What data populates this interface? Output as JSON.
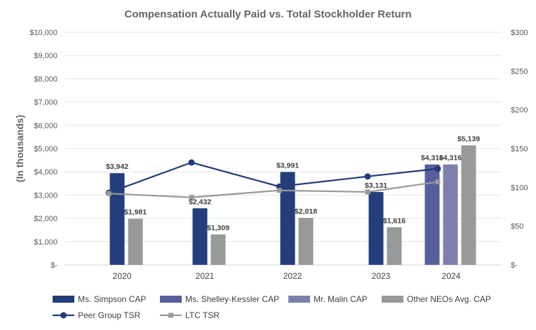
{
  "chart_data": {
    "type": "bar",
    "title": "Compensation Actually Paid vs. Total Stockholder Return",
    "ylabel": "(In thousands)",
    "categories": [
      "2020",
      "2021",
      "2022",
      "2023",
      "2024"
    ],
    "ylim_left": [
      0,
      10000
    ],
    "ylim_right": [
      0,
      300
    ],
    "left_ticks": [
      "$-",
      "$1,000",
      "$2,000",
      "$3,000",
      "$4,000",
      "$5,000",
      "$6,000",
      "$7,000",
      "$8,000",
      "$9,000",
      "$10,000"
    ],
    "right_ticks": [
      "$-",
      "$50",
      "$100",
      "$150",
      "$200",
      "$250",
      "$300"
    ],
    "colors": {
      "simpson": "#233e7a",
      "shelley": "#565e9c",
      "malin": "#7e80ac",
      "other": "#999999",
      "peer": "#223c78",
      "ltc": "#999999",
      "grid": "#e4e4e4",
      "axis_text": "#595959",
      "title": "#666666",
      "label": "#404040"
    },
    "bars": [
      {
        "category": "2020",
        "series": "simpson",
        "value": 3942,
        "label": "$3,942"
      },
      {
        "category": "2020",
        "series": "other",
        "value": 1981,
        "label": "$1,981"
      },
      {
        "category": "2021",
        "series": "simpson",
        "value": 2432,
        "label": "$2,432"
      },
      {
        "category": "2021",
        "series": "other",
        "value": 1309,
        "label": "$1,309"
      },
      {
        "category": "2022",
        "series": "simpson",
        "value": 3991,
        "label": "$3,991"
      },
      {
        "category": "2022",
        "series": "other",
        "value": 2018,
        "label": "$2,018"
      },
      {
        "category": "2023",
        "series": "simpson",
        "value": 3131,
        "label": "$3,131"
      },
      {
        "category": "2023",
        "series": "other",
        "value": 1616,
        "label": "$1,616"
      },
      {
        "category": "2024",
        "series": "shelley",
        "value": 4316,
        "label": "$4,316"
      },
      {
        "category": "2024",
        "series": "malin",
        "value": 4316,
        "label": "$4,316"
      },
      {
        "category": "2024",
        "series": "other",
        "value": 5139,
        "label": "$5,139"
      }
    ],
    "lines": [
      {
        "name": "Peer Group TSR",
        "key": "peer",
        "marker": "circle",
        "values": [
          93,
          132,
          101,
          114,
          124
        ]
      },
      {
        "name": "LTC TSR",
        "key": "ltc",
        "marker": "square",
        "values": [
          92,
          87,
          96,
          94,
          107
        ]
      }
    ],
    "legend": [
      {
        "label": "Ms. Simpson CAP",
        "key": "simpson",
        "kind": "bar"
      },
      {
        "label": "Ms. Shelley-Kessler CAP",
        "key": "shelley",
        "kind": "bar"
      },
      {
        "label": "Mr. Malin CAP",
        "key": "malin",
        "kind": "bar"
      },
      {
        "label": "Other NEOs Avg. CAP",
        "key": "other",
        "kind": "bar"
      },
      {
        "label": "Peer Group TSR",
        "key": "peer",
        "kind": "line-circle"
      },
      {
        "label": "LTC TSR",
        "key": "ltc",
        "kind": "line-square"
      }
    ],
    "legend_position": "bottom"
  }
}
